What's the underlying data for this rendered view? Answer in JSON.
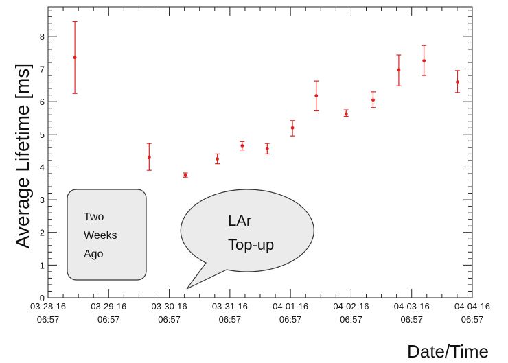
{
  "chart_data": {
    "type": "scatter",
    "xlabel": "Date/Time",
    "ylabel": "Average Lifetime [ms]",
    "ylim": [
      0,
      8.9
    ],
    "xlim": [
      "03-28-16 06:57",
      "04-04-16 06:57"
    ],
    "x_ticks": [
      {
        "line1": "03-28-16",
        "line2": "06:57"
      },
      {
        "line1": "03-29-16",
        "line2": "06:57"
      },
      {
        "line1": "03-30-16",
        "line2": "06:57"
      },
      {
        "line1": "03-31-16",
        "line2": "06:57"
      },
      {
        "line1": "04-01-16",
        "line2": "06:57"
      },
      {
        "line1": "04-02-16",
        "line2": "06:57"
      },
      {
        "line1": "04-03-16",
        "line2": "06:57"
      },
      {
        "line1": "04-04-16",
        "line2": "06:57"
      }
    ],
    "y_ticks": [
      0,
      1,
      2,
      3,
      4,
      5,
      6,
      7,
      8
    ],
    "grid": false,
    "marker_color": "#dd2222",
    "points": [
      {
        "x": "03-28-16 17:35",
        "y": 7.35,
        "y_low": 6.25,
        "y_high": 8.45
      },
      {
        "x": "03-29-16 23:00",
        "y": 4.3,
        "y_low": 3.9,
        "y_high": 4.72
      },
      {
        "x": "03-30-16 13:20",
        "y": 3.75,
        "y_low": 3.69,
        "y_high": 3.82
      },
      {
        "x": "03-31-16 02:00",
        "y": 4.25,
        "y_low": 4.1,
        "y_high": 4.4
      },
      {
        "x": "03-31-16 11:50",
        "y": 4.65,
        "y_low": 4.52,
        "y_high": 4.78
      },
      {
        "x": "03-31-16 21:45",
        "y": 4.57,
        "y_low": 4.4,
        "y_high": 4.72
      },
      {
        "x": "04-01-16 07:45",
        "y": 5.2,
        "y_low": 4.95,
        "y_high": 5.42
      },
      {
        "x": "04-01-16 17:10",
        "y": 6.18,
        "y_low": 5.72,
        "y_high": 6.63
      },
      {
        "x": "04-02-16 05:00",
        "y": 5.63,
        "y_low": 5.55,
        "y_high": 5.75
      },
      {
        "x": "04-02-16 15:40",
        "y": 6.05,
        "y_low": 5.82,
        "y_high": 6.3
      },
      {
        "x": "04-03-16 01:50",
        "y": 6.97,
        "y_low": 6.48,
        "y_high": 7.43
      },
      {
        "x": "04-03-16 11:50",
        "y": 7.25,
        "y_low": 6.8,
        "y_high": 7.72
      },
      {
        "x": "04-04-16 01:05",
        "y": 6.6,
        "y_low": 6.28,
        "y_high": 6.95
      }
    ],
    "annotations": {
      "two_weeks_ago": [
        "Two",
        "Weeks",
        "Ago"
      ],
      "lar_topup": [
        "LAr",
        "Top-up"
      ]
    }
  }
}
